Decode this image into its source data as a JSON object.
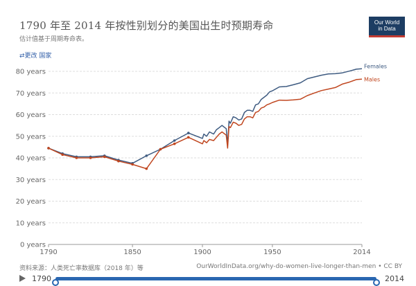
{
  "header": {
    "title": "1790 年至 2014 年按性别划分的美国出生时预期寿命",
    "subtitle": "估计值基于周期寿命表。",
    "change_country": "⇄更改 国家",
    "logo_line1": "Our World",
    "logo_line2": "in Data"
  },
  "footer": {
    "source": "资料来源：人类死亡率数据库（2018 年）等",
    "link": "OurWorldInData.org/why-do-women-live-longer-than-men • CC BY"
  },
  "timeline": {
    "start_label": "1790",
    "end_label": "2014"
  },
  "colors": {
    "females": "#3d5a80",
    "males": "#c0461f",
    "grid": "#dddddd",
    "axis_text": "#666666"
  },
  "chart_data": {
    "type": "line",
    "title": "1790 年至 2014 年按性别划分的美国出生时预期寿命",
    "xlim": [
      1790,
      2014
    ],
    "ylim": [
      0,
      80
    ],
    "x_ticks": [
      1790,
      1850,
      1900,
      1950,
      2014
    ],
    "y_ticks": [
      0,
      10,
      20,
      30,
      40,
      50,
      60,
      70,
      80
    ],
    "y_tick_labels": [
      "0 years",
      "10 years",
      "20 years",
      "30 years",
      "40 years",
      "50 years",
      "60 years",
      "70 years",
      "80 years"
    ],
    "grid": true,
    "series": [
      {
        "name": "Females",
        "points": [
          [
            1790,
            44.5
          ],
          [
            1800,
            42
          ],
          [
            1810,
            40.5
          ],
          [
            1820,
            40.5
          ],
          [
            1830,
            41
          ],
          [
            1840,
            39
          ],
          [
            1850,
            37.5
          ],
          [
            1860,
            41
          ],
          [
            1870,
            44
          ],
          [
            1880,
            48
          ],
          [
            1890,
            51.5
          ],
          [
            1900,
            49
          ],
          [
            1901,
            51
          ],
          [
            1903,
            50
          ],
          [
            1905,
            52
          ],
          [
            1908,
            51
          ],
          [
            1910,
            53
          ],
          [
            1912,
            54
          ],
          [
            1914,
            55
          ],
          [
            1916,
            54
          ],
          [
            1917,
            53.5
          ],
          [
            1918,
            46
          ],
          [
            1919,
            57
          ],
          [
            1920,
            56
          ],
          [
            1922,
            59
          ],
          [
            1924,
            58.5
          ],
          [
            1926,
            57.5
          ],
          [
            1928,
            58
          ],
          [
            1930,
            61
          ],
          [
            1932,
            62
          ],
          [
            1934,
            62
          ],
          [
            1936,
            61.5
          ],
          [
            1938,
            64.5
          ],
          [
            1940,
            65
          ],
          [
            1942,
            67
          ],
          [
            1944,
            68
          ],
          [
            1946,
            69
          ],
          [
            1948,
            70.5
          ],
          [
            1950,
            71
          ],
          [
            1955,
            72.8
          ],
          [
            1960,
            73
          ],
          [
            1965,
            73.8
          ],
          [
            1970,
            74.7
          ],
          [
            1975,
            76.6
          ],
          [
            1980,
            77.4
          ],
          [
            1985,
            78.2
          ],
          [
            1990,
            78.8
          ],
          [
            1995,
            78.9
          ],
          [
            2000,
            79.3
          ],
          [
            2005,
            80.1
          ],
          [
            2010,
            81
          ],
          [
            2014,
            81.2
          ]
        ]
      },
      {
        "name": "Males",
        "points": [
          [
            1790,
            44.5
          ],
          [
            1800,
            41.5
          ],
          [
            1810,
            40
          ],
          [
            1820,
            40
          ],
          [
            1830,
            40.5
          ],
          [
            1840,
            38.5
          ],
          [
            1850,
            37
          ],
          [
            1860,
            35
          ],
          [
            1870,
            44
          ],
          [
            1880,
            46.5
          ],
          [
            1890,
            49.5
          ],
          [
            1900,
            46.5
          ],
          [
            1901,
            48
          ],
          [
            1903,
            47
          ],
          [
            1905,
            48.5
          ],
          [
            1908,
            48
          ],
          [
            1910,
            49.5
          ],
          [
            1912,
            51
          ],
          [
            1914,
            52
          ],
          [
            1916,
            51
          ],
          [
            1917,
            50.5
          ],
          [
            1918,
            44.5
          ],
          [
            1919,
            54.5
          ],
          [
            1920,
            54
          ],
          [
            1922,
            56.5
          ],
          [
            1924,
            56
          ],
          [
            1926,
            55
          ],
          [
            1928,
            55.5
          ],
          [
            1930,
            58
          ],
          [
            1932,
            59
          ],
          [
            1934,
            59
          ],
          [
            1936,
            58.5
          ],
          [
            1938,
            61
          ],
          [
            1940,
            61.5
          ],
          [
            1942,
            63
          ],
          [
            1944,
            63.5
          ],
          [
            1946,
            64.5
          ],
          [
            1948,
            65
          ],
          [
            1950,
            65.6
          ],
          [
            1955,
            66.7
          ],
          [
            1960,
            66.6
          ],
          [
            1965,
            66.8
          ],
          [
            1970,
            67.1
          ],
          [
            1975,
            68.8
          ],
          [
            1980,
            70
          ],
          [
            1985,
            71.1
          ],
          [
            1990,
            71.8
          ],
          [
            1995,
            72.5
          ],
          [
            2000,
            74.1
          ],
          [
            2005,
            75
          ],
          [
            2010,
            76.2
          ],
          [
            2014,
            76.4
          ]
        ]
      }
    ]
  }
}
